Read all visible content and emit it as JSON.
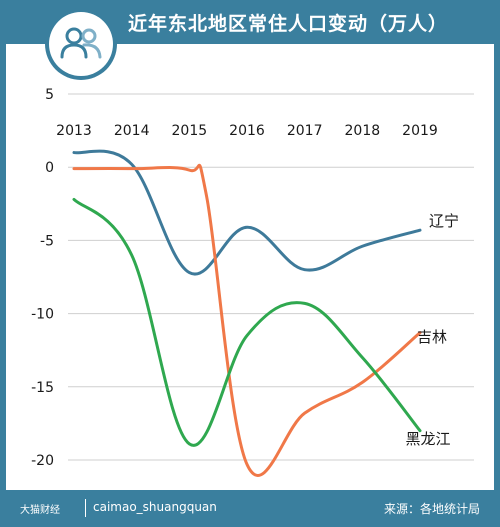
{
  "header": {
    "title": "近年东北地区常住人口变动（万人）",
    "icon": "people-icon"
  },
  "footer": {
    "brand": "大猫财经",
    "handle": "caimao_shuangquan",
    "source": "来源：各地统计局"
  },
  "colors": {
    "frame": "#3a7f9e",
    "liaoning": "#3e7a9a",
    "jilin": "#f07848",
    "heilongjiang": "#2fa84f",
    "grid": "#cfcfcf",
    "text": "#1a1a1a"
  },
  "chart_data": {
    "type": "line",
    "title": "近年东北地区常住人口变动（万人）",
    "x_tick_labels": [
      "2013",
      "2014",
      "2015",
      "2016",
      "2017",
      "2018",
      "2019"
    ],
    "y_tick_labels": [
      "5",
      "0",
      "-5",
      "-10",
      "-15",
      "-20"
    ],
    "ylim": [
      -20,
      5
    ],
    "grid": "horizontal",
    "series": [
      {
        "name": "辽宁",
        "points": [
          [
            2013,
            1.0
          ],
          [
            2014,
            0.2
          ],
          [
            2015,
            -7.2
          ],
          [
            2016,
            -4.1
          ],
          [
            2017,
            -7.0
          ],
          [
            2018,
            -5.4
          ],
          [
            2019,
            -4.3
          ]
        ]
      },
      {
        "name": "吉林",
        "points": [
          [
            2013,
            -0.1
          ],
          [
            2014,
            -0.1
          ],
          [
            2015,
            -0.2
          ],
          [
            2015.3,
            -2.0
          ],
          [
            2016,
            -20.3
          ],
          [
            2017,
            -16.8
          ],
          [
            2018,
            -14.7
          ],
          [
            2019,
            -11.3
          ]
        ]
      },
      {
        "name": "黑龙江",
        "points": [
          [
            2013,
            -2.2
          ],
          [
            2014,
            -6.0
          ],
          [
            2015,
            -18.9
          ],
          [
            2016,
            -11.5
          ],
          [
            2017,
            -9.3
          ],
          [
            2018,
            -13.0
          ],
          [
            2019,
            -18.0
          ]
        ]
      }
    ]
  }
}
